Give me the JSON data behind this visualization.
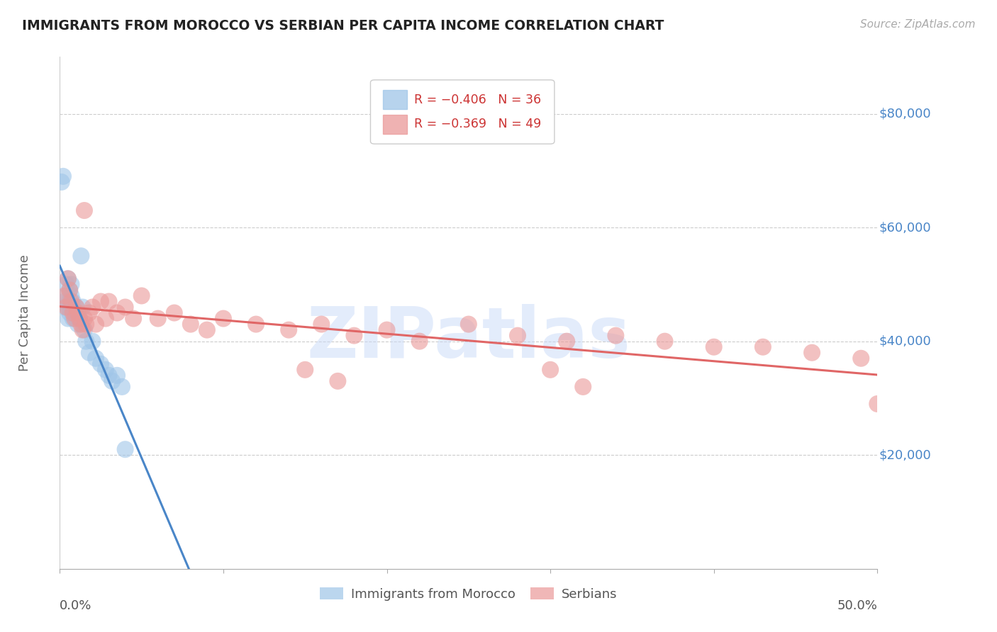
{
  "title": "IMMIGRANTS FROM MOROCCO VS SERBIAN PER CAPITA INCOME CORRELATION CHART",
  "source": "Source: ZipAtlas.com",
  "ylabel": "Per Capita Income",
  "ytick_labels": [
    "$20,000",
    "$40,000",
    "$60,000",
    "$80,000"
  ],
  "ytick_values": [
    20000,
    40000,
    60000,
    80000
  ],
  "ymin": 0,
  "ymax": 90000,
  "xmin": 0.0,
  "xmax": 0.5,
  "watermark": "ZIPatlas",
  "blue_color": "#9fc5e8",
  "pink_color": "#ea9999",
  "blue_line_color": "#4a86c8",
  "pink_line_color": "#e06666",
  "dashed_line_color": "#a4c2f4",
  "morocco_x": [
    0.001,
    0.002,
    0.003,
    0.003,
    0.004,
    0.004,
    0.005,
    0.005,
    0.005,
    0.006,
    0.006,
    0.006,
    0.007,
    0.007,
    0.007,
    0.008,
    0.008,
    0.009,
    0.01,
    0.01,
    0.011,
    0.012,
    0.013,
    0.014,
    0.015,
    0.016,
    0.018,
    0.02,
    0.022,
    0.025,
    0.028,
    0.03,
    0.032,
    0.035,
    0.038,
    0.04
  ],
  "morocco_y": [
    68000,
    69000,
    46000,
    47000,
    50000,
    48000,
    51000,
    46000,
    44000,
    49000,
    47000,
    45000,
    50000,
    48000,
    46000,
    47000,
    44000,
    45000,
    46000,
    44000,
    43000,
    44000,
    55000,
    46000,
    42000,
    40000,
    38000,
    40000,
    37000,
    36000,
    35000,
    34000,
    33000,
    34000,
    32000,
    21000
  ],
  "serbian_x": [
    0.003,
    0.004,
    0.005,
    0.006,
    0.007,
    0.008,
    0.009,
    0.01,
    0.011,
    0.012,
    0.013,
    0.014,
    0.015,
    0.016,
    0.018,
    0.02,
    0.022,
    0.025,
    0.028,
    0.03,
    0.035,
    0.04,
    0.045,
    0.05,
    0.06,
    0.07,
    0.08,
    0.09,
    0.1,
    0.12,
    0.14,
    0.16,
    0.18,
    0.2,
    0.22,
    0.25,
    0.28,
    0.31,
    0.34,
    0.37,
    0.4,
    0.43,
    0.46,
    0.49,
    0.5,
    0.15,
    0.17,
    0.3,
    0.32,
    0.015
  ],
  "serbian_y": [
    48000,
    46000,
    51000,
    49000,
    47000,
    45000,
    44000,
    46000,
    45000,
    44000,
    43000,
    42000,
    44000,
    43000,
    45000,
    46000,
    43000,
    47000,
    44000,
    47000,
    45000,
    46000,
    44000,
    48000,
    44000,
    45000,
    43000,
    42000,
    44000,
    43000,
    42000,
    43000,
    41000,
    42000,
    40000,
    43000,
    41000,
    40000,
    41000,
    40000,
    39000,
    39000,
    38000,
    37000,
    29000,
    35000,
    33000,
    35000,
    32000,
    63000
  ]
}
